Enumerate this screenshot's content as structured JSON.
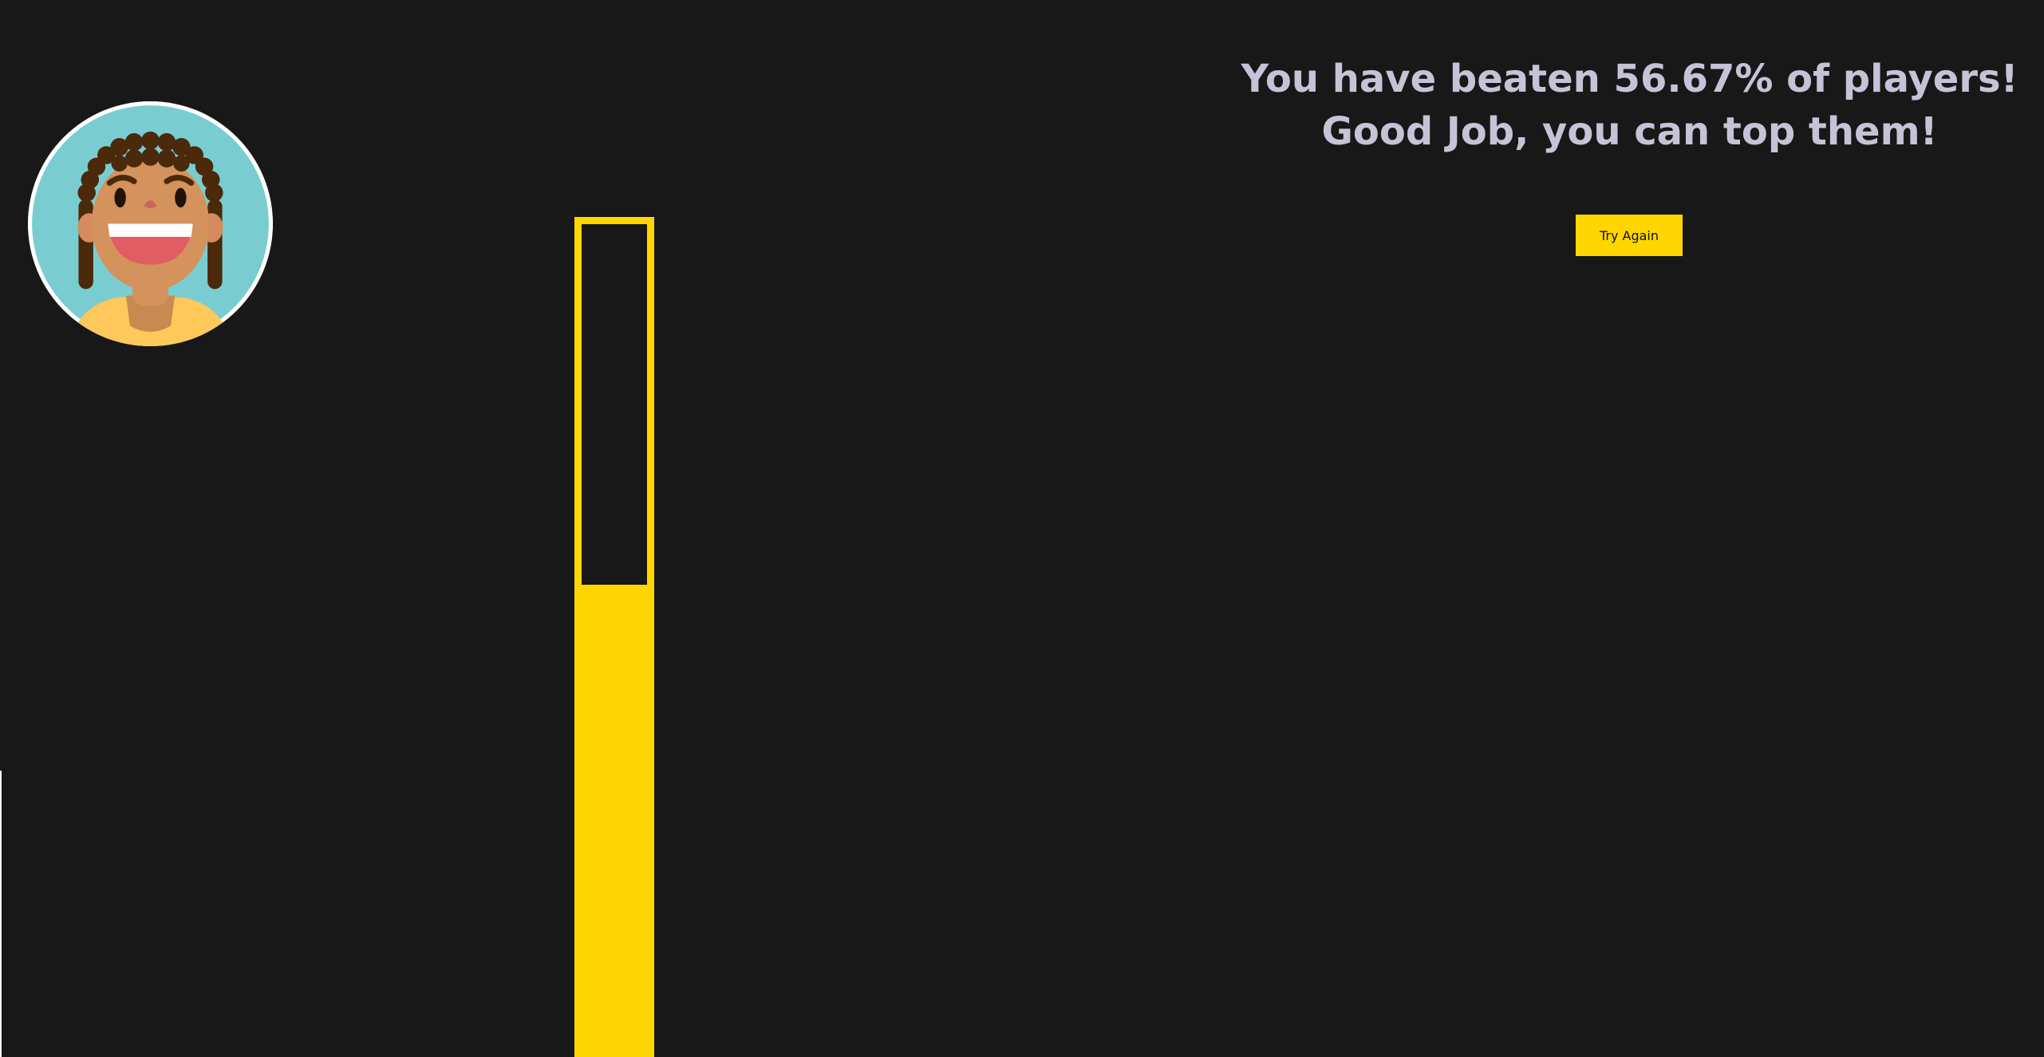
{
  "result": {
    "message": "You have beaten 56.67% of players! Good Job, you can top them!",
    "percent_beaten": 56.67
  },
  "actions": {
    "try_again_label": "Try Again"
  },
  "colors": {
    "background": "#181818",
    "accent": "#ffd600",
    "text": "#c5c3d6",
    "avatar_bg": "#79cdd1"
  },
  "avatar": {
    "icon": "smiling-girl-avatar-icon"
  }
}
